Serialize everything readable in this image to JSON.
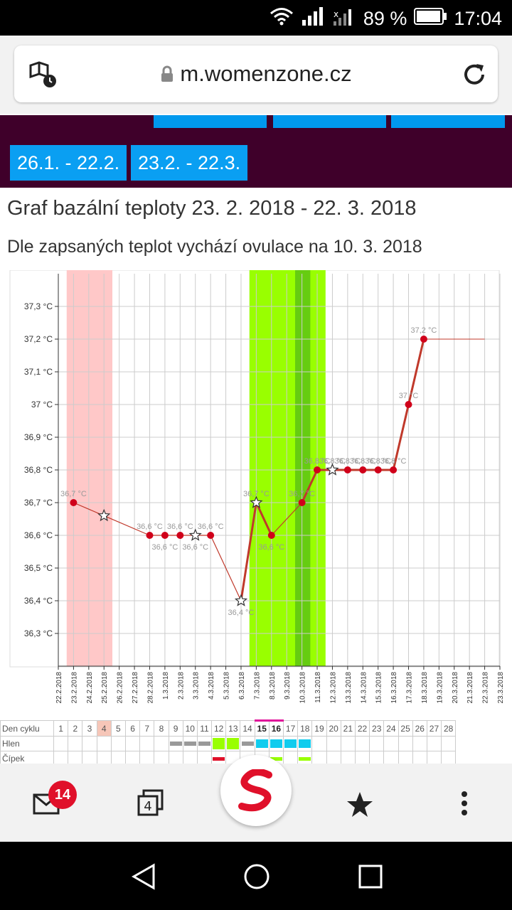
{
  "status": {
    "battery": "89 %",
    "time": "17:04"
  },
  "browser": {
    "url": "m.womenzone.cz",
    "tabs_count": "4",
    "mail_badge": "14"
  },
  "periods": [
    "26.1. - 22.2.",
    "23.2. - 22.3."
  ],
  "title": "Graf bazální teploty 23. 2. 2018 - 22. 3. 2018",
  "subtitle": "Dle zapsaných teplot vychází ovulace na 10. 3. 2018",
  "chart_data": {
    "type": "line",
    "yunit": "°C",
    "ylim": [
      36.2,
      37.4
    ],
    "ytick_labels": [
      "36,3 °C",
      "36,4 °C",
      "36,5 °C",
      "36,6 °C",
      "36,7 °C",
      "36,8 °C",
      "36,9 °C",
      "37 °C",
      "37,1 °C",
      "37,2 °C",
      "37,3 °C"
    ],
    "ytick_values": [
      36.3,
      36.4,
      36.5,
      36.6,
      36.7,
      36.8,
      36.9,
      37.0,
      37.1,
      37.2,
      37.3
    ],
    "x_labels": [
      "22.2.2018",
      "23.2.2018",
      "24.2.2018",
      "25.2.2018",
      "26.2.2018",
      "27.2.2018",
      "28.2.2018",
      "1.3.2018",
      "2.3.2018",
      "3.3.2018",
      "4.3.2018",
      "5.3.2018",
      "6.3.2018",
      "7.3.2018",
      "8.3.2018",
      "9.3.2018",
      "10.3.2018",
      "11.3.2018",
      "12.3.2018",
      "13.3.2018",
      "14.3.2018",
      "15.3.2018",
      "16.3.2018",
      "17.3.2018",
      "18.3.2018",
      "19.3.2018",
      "20.3.2018",
      "21.3.2018",
      "22.3.2018",
      "23.3.2018"
    ],
    "points": [
      {
        "x": "23.2.2018",
        "y": 36.7,
        "marker": "dot",
        "label": "36,7 °C"
      },
      {
        "x": "25.2.2018",
        "y": 36.66,
        "marker": "star",
        "label": ""
      },
      {
        "x": "28.2.2018",
        "y": 36.6,
        "marker": "dot",
        "label": "36,6 °C"
      },
      {
        "x": "1.3.2018",
        "y": 36.6,
        "marker": "dot",
        "label": "36,6 °C"
      },
      {
        "x": "2.3.2018",
        "y": 36.6,
        "marker": "dot",
        "label": "36,6 °C"
      },
      {
        "x": "3.3.2018",
        "y": 36.6,
        "marker": "star",
        "label": "36,6 °C"
      },
      {
        "x": "4.3.2018",
        "y": 36.6,
        "marker": "dot",
        "label": "36,6 °C"
      },
      {
        "x": "6.3.2018",
        "y": 36.4,
        "marker": "star",
        "label": "36,4 °C"
      },
      {
        "x": "7.3.2018",
        "y": 36.7,
        "marker": "star",
        "label": "36,7 °C"
      },
      {
        "x": "8.3.2018",
        "y": 36.6,
        "marker": "dot",
        "label": "36,6 °C"
      },
      {
        "x": "10.3.2018",
        "y": 36.7,
        "marker": "dot",
        "label": "36,7 °C"
      },
      {
        "x": "11.3.2018",
        "y": 36.8,
        "marker": "dot",
        "label": "36,8 °C"
      },
      {
        "x": "12.3.2018",
        "y": 36.8,
        "marker": "star",
        "label": "36,8 °C"
      },
      {
        "x": "13.3.2018",
        "y": 36.8,
        "marker": "dot",
        "label": "36,8 °C"
      },
      {
        "x": "14.3.2018",
        "y": 36.8,
        "marker": "dot",
        "label": "36,8 °C"
      },
      {
        "x": "15.3.2018",
        "y": 36.8,
        "marker": "dot",
        "label": "36,8 °C"
      },
      {
        "x": "16.3.2018",
        "y": 36.8,
        "marker": "dot",
        "label": "36,8 °C"
      },
      {
        "x": "17.3.2018",
        "y": 37.0,
        "marker": "dot",
        "label": "37 °C"
      },
      {
        "x": "18.3.2018",
        "y": 37.2,
        "marker": "dot",
        "label": "37,2 °C"
      }
    ],
    "baseline": {
      "from": "18.3.2018",
      "to": "22.3.2018",
      "y": 37.2
    },
    "bands": [
      {
        "from": "22.2.2018",
        "to": "25.2.2018",
        "color": "#ffc8c8"
      },
      {
        "from": "6.3.2018",
        "to": "11.3.2018",
        "color": "#99ff00"
      },
      {
        "from": "9.3.2018",
        "to": "10.3.2018",
        "color": "#66cc11"
      }
    ]
  },
  "cycle_table": {
    "row_labels": [
      "Den cyklu",
      "Hlen",
      "Čípek"
    ],
    "days": [
      "1",
      "2",
      "3",
      "4",
      "5",
      "6",
      "7",
      "8",
      "9",
      "10",
      "11",
      "12",
      "13",
      "14",
      "15",
      "16",
      "17",
      "18",
      "19",
      "20",
      "21",
      "22",
      "23",
      "24",
      "25",
      "26",
      "27",
      "28"
    ]
  }
}
